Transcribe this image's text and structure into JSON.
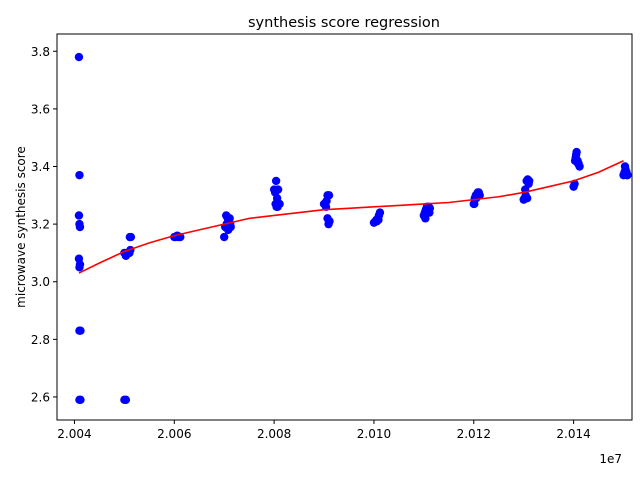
{
  "chart_data": {
    "type": "scatter",
    "title": "synthesis score regression",
    "xlabel": "",
    "ylabel": "microwave synthesis score",
    "x_offset_label": "1e7",
    "xlim": [
      2.00365,
      2.01517
    ],
    "ylim": [
      2.52,
      3.86
    ],
    "x_ticks": [
      2.004,
      2.006,
      2.008,
      2.01,
      2.012,
      2.014
    ],
    "x_tick_labels": [
      "2.004",
      "2.006",
      "2.008",
      "2.010",
      "2.012",
      "2.014"
    ],
    "y_ticks": [
      2.6,
      2.8,
      3.0,
      3.2,
      3.4,
      3.6,
      3.8
    ],
    "y_tick_labels": [
      "2.6",
      "2.8",
      "3.0",
      "3.2",
      "3.4",
      "3.6",
      "3.8"
    ],
    "grid": false,
    "legend": "none",
    "series": [
      {
        "kind": "scatter",
        "color": "#0000ff",
        "points": [
          [
            2.00409,
            3.78
          ],
          [
            2.0041,
            3.37
          ],
          [
            2.00409,
            3.23
          ],
          [
            2.0041,
            3.2
          ],
          [
            2.00411,
            3.19
          ],
          [
            2.00409,
            3.08
          ],
          [
            2.0041,
            3.05
          ],
          [
            2.00411,
            3.06
          ],
          [
            2.0041,
            2.83
          ],
          [
            2.00412,
            2.83
          ],
          [
            2.0041,
            2.59
          ],
          [
            2.00412,
            2.59
          ],
          [
            2.005,
            3.1
          ],
          [
            2.00503,
            3.09
          ],
          [
            2.00506,
            3.1
          ],
          [
            2.0051,
            3.1
          ],
          [
            2.00512,
            3.11
          ],
          [
            2.00509,
            3.1
          ],
          [
            2.00511,
            3.155
          ],
          [
            2.00513,
            3.155
          ],
          [
            2.005,
            2.59
          ],
          [
            2.00503,
            2.59
          ],
          [
            2.006,
            3.155
          ],
          [
            2.00603,
            3.155
          ],
          [
            2.00606,
            3.16
          ],
          [
            2.00609,
            3.155
          ],
          [
            2.00612,
            3.155
          ],
          [
            2.007,
            3.155
          ],
          [
            2.00702,
            3.19
          ],
          [
            2.00705,
            3.2
          ],
          [
            2.00707,
            3.22
          ],
          [
            2.00709,
            3.21
          ],
          [
            2.00711,
            3.22
          ],
          [
            2.00713,
            3.19
          ],
          [
            2.00704,
            3.23
          ],
          [
            2.00708,
            3.18
          ],
          [
            2.00712,
            3.2
          ],
          [
            2.008,
            3.32
          ],
          [
            2.00802,
            3.31
          ],
          [
            2.00804,
            3.35
          ],
          [
            2.00806,
            3.29
          ],
          [
            2.00808,
            3.32
          ],
          [
            2.00803,
            3.27
          ],
          [
            2.00805,
            3.26
          ],
          [
            2.00809,
            3.27
          ],
          [
            2.00811,
            3.27
          ],
          [
            2.00807,
            3.26
          ],
          [
            2.009,
            3.27
          ],
          [
            2.00902,
            3.27
          ],
          [
            2.00905,
            3.28
          ],
          [
            2.00907,
            3.3
          ],
          [
            2.0091,
            3.3
          ],
          [
            2.00904,
            3.26
          ],
          [
            2.00907,
            3.22
          ],
          [
            2.00909,
            3.2
          ],
          [
            2.00911,
            3.21
          ],
          [
            2.01,
            3.205
          ],
          [
            2.01003,
            3.21
          ],
          [
            2.01005,
            3.215
          ],
          [
            2.01008,
            3.22
          ],
          [
            2.0101,
            3.23
          ],
          [
            2.01012,
            3.24
          ],
          [
            2.01006,
            3.21
          ],
          [
            2.01009,
            3.215
          ],
          [
            2.011,
            3.23
          ],
          [
            2.01102,
            3.24
          ],
          [
            2.01104,
            3.25
          ],
          [
            2.01106,
            3.26
          ],
          [
            2.01108,
            3.25
          ],
          [
            2.0111,
            3.26
          ],
          [
            2.01112,
            3.255
          ],
          [
            2.01103,
            3.22
          ],
          [
            2.01107,
            3.24
          ],
          [
            2.01111,
            3.24
          ],
          [
            2.012,
            3.27
          ],
          [
            2.01202,
            3.29
          ],
          [
            2.01204,
            3.3
          ],
          [
            2.01206,
            3.3
          ],
          [
            2.01208,
            3.31
          ],
          [
            2.0121,
            3.31
          ],
          [
            2.01212,
            3.3
          ],
          [
            2.01205,
            3.29
          ],
          [
            2.01209,
            3.3
          ],
          [
            2.01201,
            3.27
          ],
          [
            2.013,
            3.285
          ],
          [
            2.01302,
            3.29
          ],
          [
            2.01304,
            3.3
          ],
          [
            2.01306,
            3.35
          ],
          [
            2.01308,
            3.355
          ],
          [
            2.0131,
            3.34
          ],
          [
            2.01303,
            3.32
          ],
          [
            2.01307,
            3.29
          ],
          [
            2.01311,
            3.35
          ],
          [
            2.014,
            3.33
          ],
          [
            2.01402,
            3.34
          ],
          [
            2.01403,
            3.42
          ],
          [
            2.01405,
            3.44
          ],
          [
            2.01406,
            3.45
          ],
          [
            2.01408,
            3.42
          ],
          [
            2.0141,
            3.41
          ],
          [
            2.01412,
            3.4
          ],
          [
            2.01404,
            3.43
          ],
          [
            2.01409,
            3.41
          ],
          [
            2.015,
            3.37
          ],
          [
            2.01502,
            3.38
          ],
          [
            2.01504,
            3.39
          ],
          [
            2.01506,
            3.38
          ],
          [
            2.01508,
            3.37
          ],
          [
            2.01503,
            3.4
          ],
          [
            2.01507,
            3.37
          ]
        ]
      },
      {
        "kind": "line",
        "color": "#ff0000",
        "points": [
          [
            2.00409,
            3.03
          ],
          [
            2.0045,
            3.065
          ],
          [
            2.005,
            3.105
          ],
          [
            2.0055,
            3.135
          ],
          [
            2.006,
            3.16
          ],
          [
            2.0065,
            3.18
          ],
          [
            2.007,
            3.2
          ],
          [
            2.0075,
            3.22
          ],
          [
            2.008,
            3.23
          ],
          [
            2.0085,
            3.24
          ],
          [
            2.009,
            3.25
          ],
          [
            2.0095,
            3.255
          ],
          [
            2.01,
            3.26
          ],
          [
            2.0105,
            3.265
          ],
          [
            2.011,
            3.27
          ],
          [
            2.0115,
            3.275
          ],
          [
            2.012,
            3.285
          ],
          [
            2.0125,
            3.295
          ],
          [
            2.013,
            3.31
          ],
          [
            2.0135,
            3.33
          ],
          [
            2.014,
            3.35
          ],
          [
            2.0145,
            3.38
          ],
          [
            2.015,
            3.42
          ]
        ]
      }
    ]
  }
}
